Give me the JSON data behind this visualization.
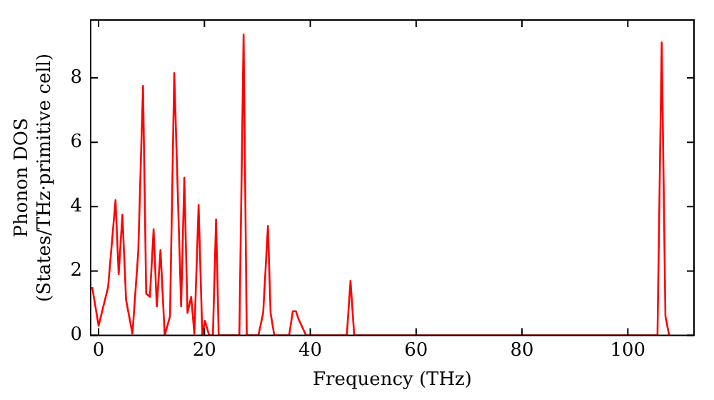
{
  "chart_data": {
    "type": "line",
    "xlabel": "Frequency (THz)",
    "ylabel": "Phonon DOS\n(States/THz·primitive cell)",
    "x": [
      -1.2,
      0,
      1.8,
      3.2,
      3.8,
      4.5,
      5.2,
      6.4,
      7.5,
      8.4,
      9.0,
      9.7,
      10.4,
      11,
      11.7,
      12.5,
      13.5,
      14.3,
      15.6,
      16.2,
      16.8,
      17.5,
      18.1,
      18.9,
      19.6,
      20.1,
      20.9,
      21.6,
      22.2,
      22.7,
      26.6,
      27.4,
      28,
      30.2,
      31.1,
      32,
      32.5,
      33.2,
      36,
      36.7,
      37.3,
      37.8,
      39.2,
      46.9,
      47.6,
      48.3,
      105.6,
      106.4,
      107.1,
      107.8
    ],
    "series": [
      {
        "color": "#ff0000",
        "values": [
          1.5,
          0.3,
          1.5,
          4.2,
          1.9,
          3.75,
          1.1,
          0.05,
          2.6,
          7.75,
          1.3,
          1.2,
          3.3,
          0.9,
          2.65,
          0,
          0.6,
          8.15,
          0.9,
          4.9,
          0.7,
          1.2,
          0.05,
          4.05,
          0,
          0.45,
          0,
          0,
          3.6,
          0,
          0,
          9.35,
          0,
          0,
          0.7,
          3.4,
          0.7,
          0,
          0,
          0.75,
          0.75,
          0.5,
          0,
          0,
          1.7,
          0,
          0,
          9.1,
          0.6,
          0
        ]
      }
    ],
    "xlim": [
      -1.5,
      112.5
    ],
    "xticks": [
      0,
      20,
      40,
      60,
      80,
      100
    ],
    "ylim": [
      0,
      9.8
    ],
    "yticks": [
      0,
      2,
      4,
      6,
      8
    ],
    "grid": false,
    "legend": false,
    "marker": "none",
    "line_style": "solid"
  }
}
